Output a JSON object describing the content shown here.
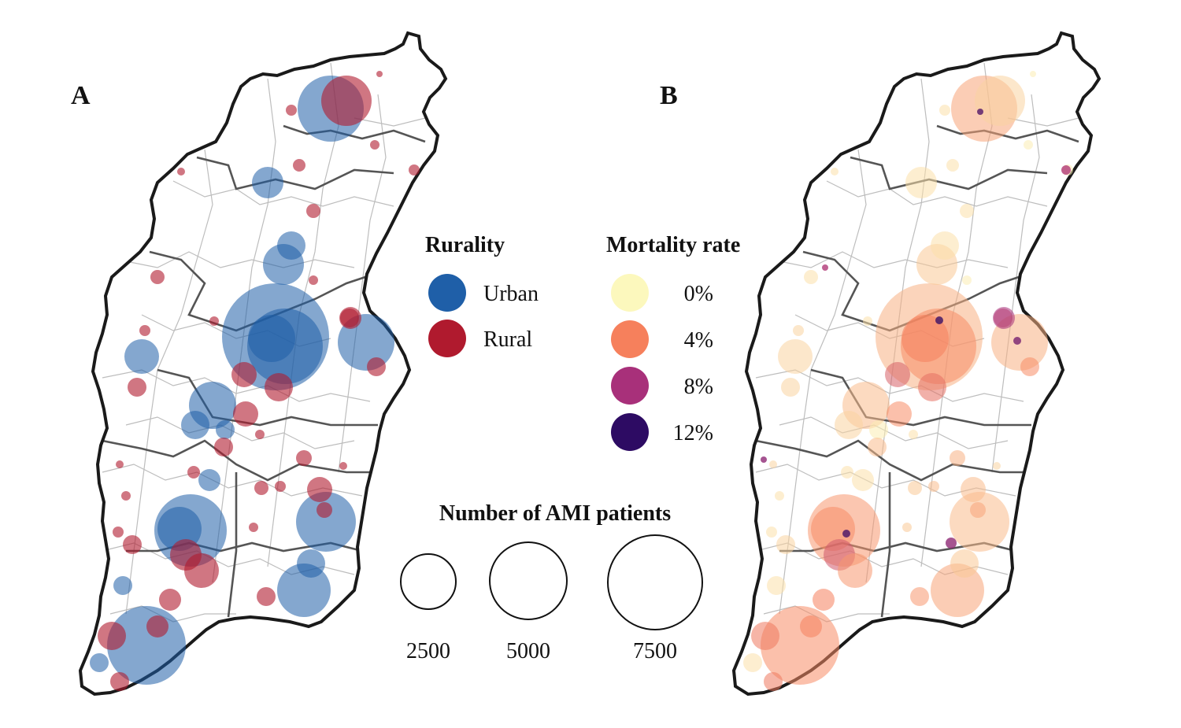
{
  "panels": [
    {
      "label": "A",
      "color_by": "Rurality"
    },
    {
      "label": "B",
      "color_by": "Mortality rate"
    }
  ],
  "legend_rurality": {
    "title": "Rurality",
    "items": [
      {
        "label": "Urban",
        "color": "#1f5fa8"
      },
      {
        "label": "Rural",
        "color": "#b01a2e"
      }
    ]
  },
  "legend_mortality": {
    "title": "Mortality rate",
    "items": [
      {
        "label": "0%",
        "color": "#fcf8bd"
      },
      {
        "label": "4%",
        "color": "#f6805c"
      },
      {
        "label": "8%",
        "color": "#a8307a"
      },
      {
        "label": "12%",
        "color": "#2d0b63"
      }
    ]
  },
  "legend_size": {
    "title": "Number of AMI patients",
    "items": [
      {
        "label": "2500",
        "value": 2500
      },
      {
        "label": "5000",
        "value": 5000
      },
      {
        "label": "7500",
        "value": 7500
      }
    ]
  },
  "colors": {
    "outline": "#1a1a1a",
    "prefecture_border": "#555555",
    "county_border": "#bdbdbd",
    "urban": "#1f5fa8",
    "rural": "#b01a2e"
  }
}
